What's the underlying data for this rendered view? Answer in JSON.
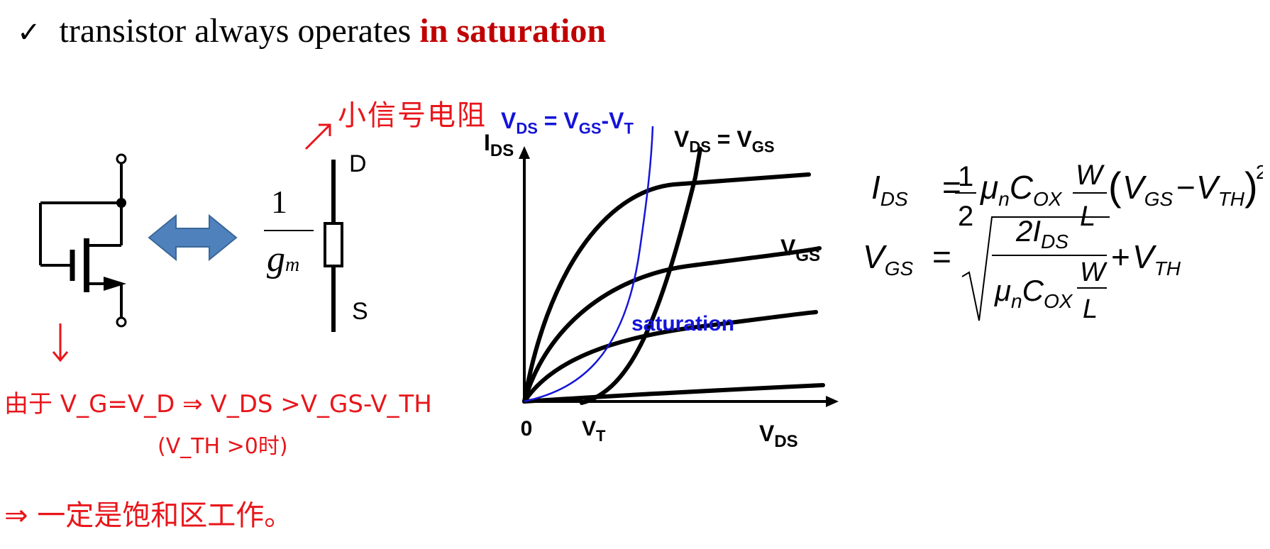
{
  "header": {
    "check_icon": "checkmark-icon",
    "text": "transistor always operates",
    "highlight": "in saturation"
  },
  "circuit": {
    "drain_label": "D",
    "source_label": "S",
    "resistance_numerator": "1",
    "resistance_denominator": "g",
    "resistance_subscript": "m",
    "equivalence_icon": "double-arrow-icon"
  },
  "annotations": {
    "small_signal": "小信号电阻",
    "condition_line1": "由于 V_G=V_D ⇒ V_DS >V_GS-V_TH",
    "condition_line2": "(V_TH >0时)",
    "conclusion": "⇒ 一定是饱和区工作。",
    "ink_color": "#e8161b"
  },
  "graph": {
    "y_axis": "I",
    "y_axis_sub": "DS",
    "x_axis": "V",
    "x_axis_sub": "DS",
    "origin": "0",
    "vt": "V",
    "vt_sub": "T",
    "blue_curve_label": "V_DS = V_GS-V_T",
    "black_curve_label": "V_DS = V_GS",
    "vgs_label": "V",
    "vgs_sub": "GS",
    "region_label": "saturation",
    "blue": "#1414d8"
  },
  "equations": {
    "ids": "I_DS = 1/2 μ_n C_OX W/L (V_GS − V_TH)^2",
    "vgs": "V_GS = √(2I_DS / (μ_n C_OX W/L)) + V_TH"
  }
}
